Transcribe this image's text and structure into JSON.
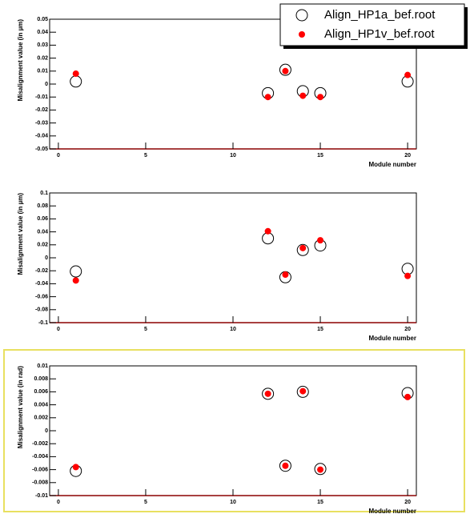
{
  "chart_data": [
    {
      "type": "scatter",
      "ylabel": "Misalignment value (in µm)",
      "xlabel": "Module number",
      "xlim": [
        -0.5,
        20.5
      ],
      "xticks": [
        0,
        5,
        10,
        15,
        20
      ],
      "ylim": [
        -0.05,
        0.05
      ],
      "yticks": [
        -0.05,
        -0.04,
        -0.03,
        -0.02,
        -0.01,
        0,
        0.01,
        0.02,
        0.03,
        0.04,
        0.05
      ],
      "series": [
        {
          "name": "Align_HP1a_bef.root",
          "color": "#000000",
          "marker": "open-circle",
          "x": [
            1,
            12,
            13,
            14,
            15,
            20
          ],
          "values": [
            0.002,
            -0.007,
            0.011,
            -0.0055,
            -0.007,
            0.002
          ]
        },
        {
          "name": "Align_HP1v_bef.root",
          "color": "#ff0000",
          "marker": "dot",
          "x": [
            1,
            12,
            13,
            14,
            15,
            20
          ],
          "values": [
            0.008,
            -0.01,
            0.01,
            -0.009,
            -0.01,
            0.007
          ]
        }
      ]
    },
    {
      "type": "scatter",
      "ylabel": "Misalignment value (in µm)",
      "xlabel": "Module number",
      "xlim": [
        -0.5,
        20.5
      ],
      "xticks": [
        0,
        5,
        10,
        15,
        20
      ],
      "ylim": [
        -0.1,
        0.1
      ],
      "yticks": [
        -0.1,
        -0.08,
        -0.06,
        -0.04,
        -0.02,
        0,
        0.02,
        0.04,
        0.06,
        0.08,
        0.1
      ],
      "series": [
        {
          "color": "#000000",
          "marker": "open-circle",
          "x": [
            1,
            12,
            13,
            14,
            15,
            20
          ],
          "values": [
            -0.021,
            0.03,
            -0.03,
            0.012,
            0.019,
            -0.017
          ]
        },
        {
          "color": "#ff0000",
          "marker": "dot",
          "x": [
            1,
            12,
            13,
            14,
            15,
            20
          ],
          "values": [
            -0.035,
            0.041,
            -0.026,
            0.015,
            0.027,
            -0.028
          ]
        }
      ]
    },
    {
      "type": "scatter",
      "ylabel": "Misalignment value (in rad)",
      "xlabel": "Module number",
      "xlim": [
        -0.5,
        20.5
      ],
      "xticks": [
        0,
        5,
        10,
        15,
        20
      ],
      "ylim": [
        -0.01,
        0.01
      ],
      "yticks": [
        -0.01,
        -0.008,
        -0.006,
        -0.004,
        -0.002,
        0,
        0.002,
        0.004,
        0.006,
        0.008,
        0.01
      ],
      "series": [
        {
          "color": "#000000",
          "marker": "open-circle",
          "x": [
            1,
            12,
            13,
            14,
            15,
            20
          ],
          "values": [
            -0.0062,
            0.0057,
            -0.0054,
            0.006,
            -0.0059,
            0.0058
          ]
        },
        {
          "color": "#ff0000",
          "marker": "dot",
          "x": [
            1,
            12,
            13,
            14,
            15,
            20
          ],
          "values": [
            -0.0056,
            0.0057,
            -0.0054,
            0.0061,
            -0.006,
            0.0052
          ]
        }
      ]
    }
  ]
}
